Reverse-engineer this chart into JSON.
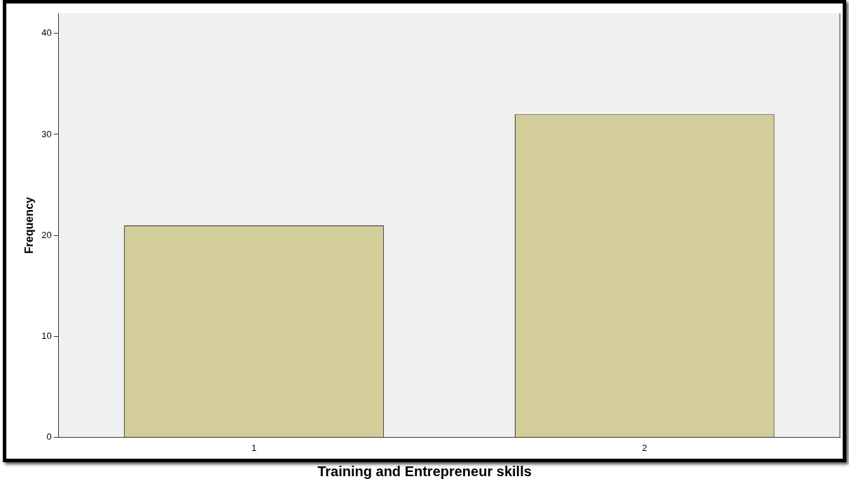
{
  "chart_data": {
    "type": "bar",
    "xlabel": "Training and Entrepreneur skills",
    "ylabel": "Frequency",
    "categories": [
      "1",
      "2"
    ],
    "values": [
      21,
      32
    ],
    "color": "#d3ce99",
    "ylim": [
      0,
      42
    ],
    "yticks": [
      0,
      10,
      20,
      30,
      40
    ],
    "grid": false,
    "legend": false
  }
}
